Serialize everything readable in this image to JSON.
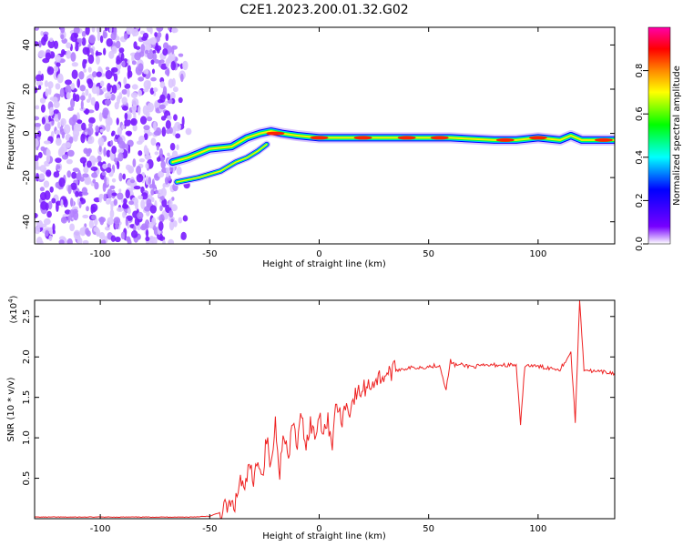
{
  "title": "C2E1.2023.200.01.32.G02",
  "chart_data": [
    {
      "type": "heatmap",
      "xlabel": "Height of straight line (km)",
      "ylabel": "Frequency (Hz)",
      "xlim": [
        -130,
        135
      ],
      "ylim": [
        -50,
        48
      ],
      "xticks": [
        -100,
        -50,
        0,
        50,
        100
      ],
      "yticks": [
        -40,
        -20,
        0,
        20,
        40
      ],
      "colorbar": {
        "label": "Normalized spectral amplitude",
        "range": [
          0,
          1
        ],
        "ticks": [
          "0.0",
          "0.2",
          "0.4",
          "0.6",
          "0.8"
        ],
        "colors": [
          "#ffffff",
          "#7700ff",
          "#0000ff",
          "#00ffff",
          "#00ff00",
          "#ffff00",
          "#ff8800",
          "#ff0000",
          "#ff00aa"
        ]
      },
      "noise_region_x": [
        -130,
        -58
      ],
      "ridges": [
        {
          "name": "main",
          "points": [
            [
              -67,
              -13
            ],
            [
              -60,
              -11
            ],
            [
              -50,
              -7
            ],
            [
              -40,
              -6
            ],
            [
              -33,
              -2
            ],
            [
              -27,
              0
            ],
            [
              -22,
              1
            ],
            [
              -17,
              0
            ],
            [
              -10,
              -1
            ],
            [
              0,
              -2
            ],
            [
              10,
              -2
            ],
            [
              30,
              -2
            ],
            [
              60,
              -2
            ],
            [
              80,
              -3
            ],
            [
              90,
              -3
            ],
            [
              100,
              -2
            ],
            [
              110,
              -3
            ],
            [
              115,
              -1
            ],
            [
              120,
              -3
            ],
            [
              135,
              -3
            ]
          ]
        },
        {
          "name": "secondary",
          "points": [
            [
              -65,
              -22
            ],
            [
              -55,
              -20
            ],
            [
              -45,
              -17
            ],
            [
              -38,
              -13
            ],
            [
              -33,
              -11
            ],
            [
              -28,
              -8
            ],
            [
              -24,
              -5
            ]
          ]
        }
      ]
    },
    {
      "type": "line",
      "xlabel": "Height of straight line (km)",
      "ylabel": "SNR (10 * v/v)",
      "multiplier": "(x10",
      "multiplier_exp": "4",
      "multiplier_close": ")",
      "xlim": [
        -130,
        135
      ],
      "ylim": [
        0,
        2.7
      ],
      "xticks": [
        -100,
        -50,
        0,
        50,
        100
      ],
      "yticks": [
        "0.5",
        "1.0",
        "1.5",
        "2.0",
        "2.5"
      ],
      "color": "#ee2222",
      "x": [
        -130,
        -100,
        -60,
        -50,
        -45,
        -42,
        -40,
        -38,
        -36,
        -34,
        -32,
        -30,
        -28,
        -26,
        -24,
        -22,
        -20,
        -18,
        -16,
        -14,
        -12,
        -10,
        -8,
        -6,
        -4,
        -2,
        0,
        2,
        4,
        6,
        8,
        10,
        12,
        14,
        16,
        18,
        20,
        25,
        30,
        35,
        40,
        50,
        55,
        58,
        60,
        62,
        65,
        70,
        80,
        90,
        92,
        94,
        100,
        110,
        115,
        117,
        119,
        121,
        125,
        135
      ],
      "y": [
        0.02,
        0.02,
        0.02,
        0.03,
        0.08,
        0.15,
        0.15,
        0.2,
        0.5,
        0.3,
        0.7,
        0.4,
        0.8,
        0.5,
        1.0,
        0.6,
        1.2,
        0.6,
        1.1,
        0.7,
        1.2,
        0.9,
        1.3,
        0.9,
        1.2,
        1.0,
        1.3,
        1.1,
        1.2,
        0.95,
        1.45,
        1.2,
        1.4,
        1.35,
        1.5,
        1.55,
        1.6,
        1.7,
        1.78,
        1.84,
        1.86,
        1.88,
        1.9,
        1.6,
        1.95,
        1.9,
        1.9,
        1.88,
        1.9,
        1.9,
        1.15,
        1.9,
        1.88,
        1.85,
        2.05,
        1.2,
        2.7,
        1.85,
        1.82,
        1.8
      ]
    }
  ]
}
